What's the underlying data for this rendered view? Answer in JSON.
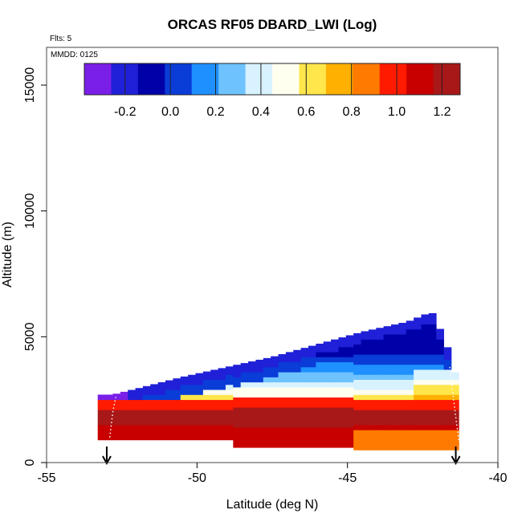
{
  "chart_data": {
    "type": "heatmap",
    "title": "ORCAS RF05 DBARD_LWI (Log)",
    "flights_label": "Flts: 5",
    "date_label": "MMDD: 0125",
    "xlabel": "Latitude (deg N)",
    "ylabel": "Altitude (m)",
    "xlim": [
      -55,
      -40
    ],
    "ylim": [
      0,
      16500
    ],
    "xticks": [
      -55,
      -50,
      -45,
      -40
    ],
    "yticks": [
      0,
      5000,
      10000,
      15000
    ],
    "colorbar": {
      "range": [
        -0.38,
        1.28
      ],
      "ticks": [
        -0.2,
        0.0,
        0.2,
        0.4,
        0.6,
        0.8,
        1.0,
        1.2
      ],
      "colors": [
        "#7a1fe8",
        "#2020d8",
        "#0000a8",
        "#0a3cd8",
        "#1e90ff",
        "#6ec3ff",
        "#d8f2ff",
        "#fffff0",
        "#ffe64a",
        "#ffb000",
        "#ff7a00",
        "#ff1a00",
        "#c80000",
        "#a81818"
      ]
    },
    "arrows_at_latitude": [
      -53.0,
      -41.4
    ],
    "flight_track": [
      {
        "lat": -52.9,
        "alt": 1000
      },
      {
        "lat": -52.8,
        "alt": 2000
      },
      {
        "lat": -52.7,
        "alt": 2600
      },
      {
        "lat": -41.6,
        "alt": 3800
      },
      {
        "lat": -41.5,
        "alt": 2800
      },
      {
        "lat": -41.4,
        "alt": 1800
      },
      {
        "lat": -41.3,
        "alt": 900
      }
    ],
    "column_top_altitude": [
      {
        "lat": -52.8,
        "alt": 2700
      },
      {
        "lat": -51.8,
        "alt": 3000
      },
      {
        "lat": -50.5,
        "alt": 3400
      },
      {
        "lat": -49.0,
        "alt": 3800
      },
      {
        "lat": -47.5,
        "alt": 4200
      },
      {
        "lat": -46.0,
        "alt": 4700
      },
      {
        "lat": -44.5,
        "alt": 5200
      },
      {
        "lat": -43.0,
        "alt": 5600
      },
      {
        "lat": -42.2,
        "alt": 6000
      },
      {
        "lat": -41.8,
        "alt": 5000
      },
      {
        "lat": -41.5,
        "alt": 4000
      },
      {
        "lat": -41.3,
        "alt": 2900
      }
    ],
    "grid": false
  }
}
